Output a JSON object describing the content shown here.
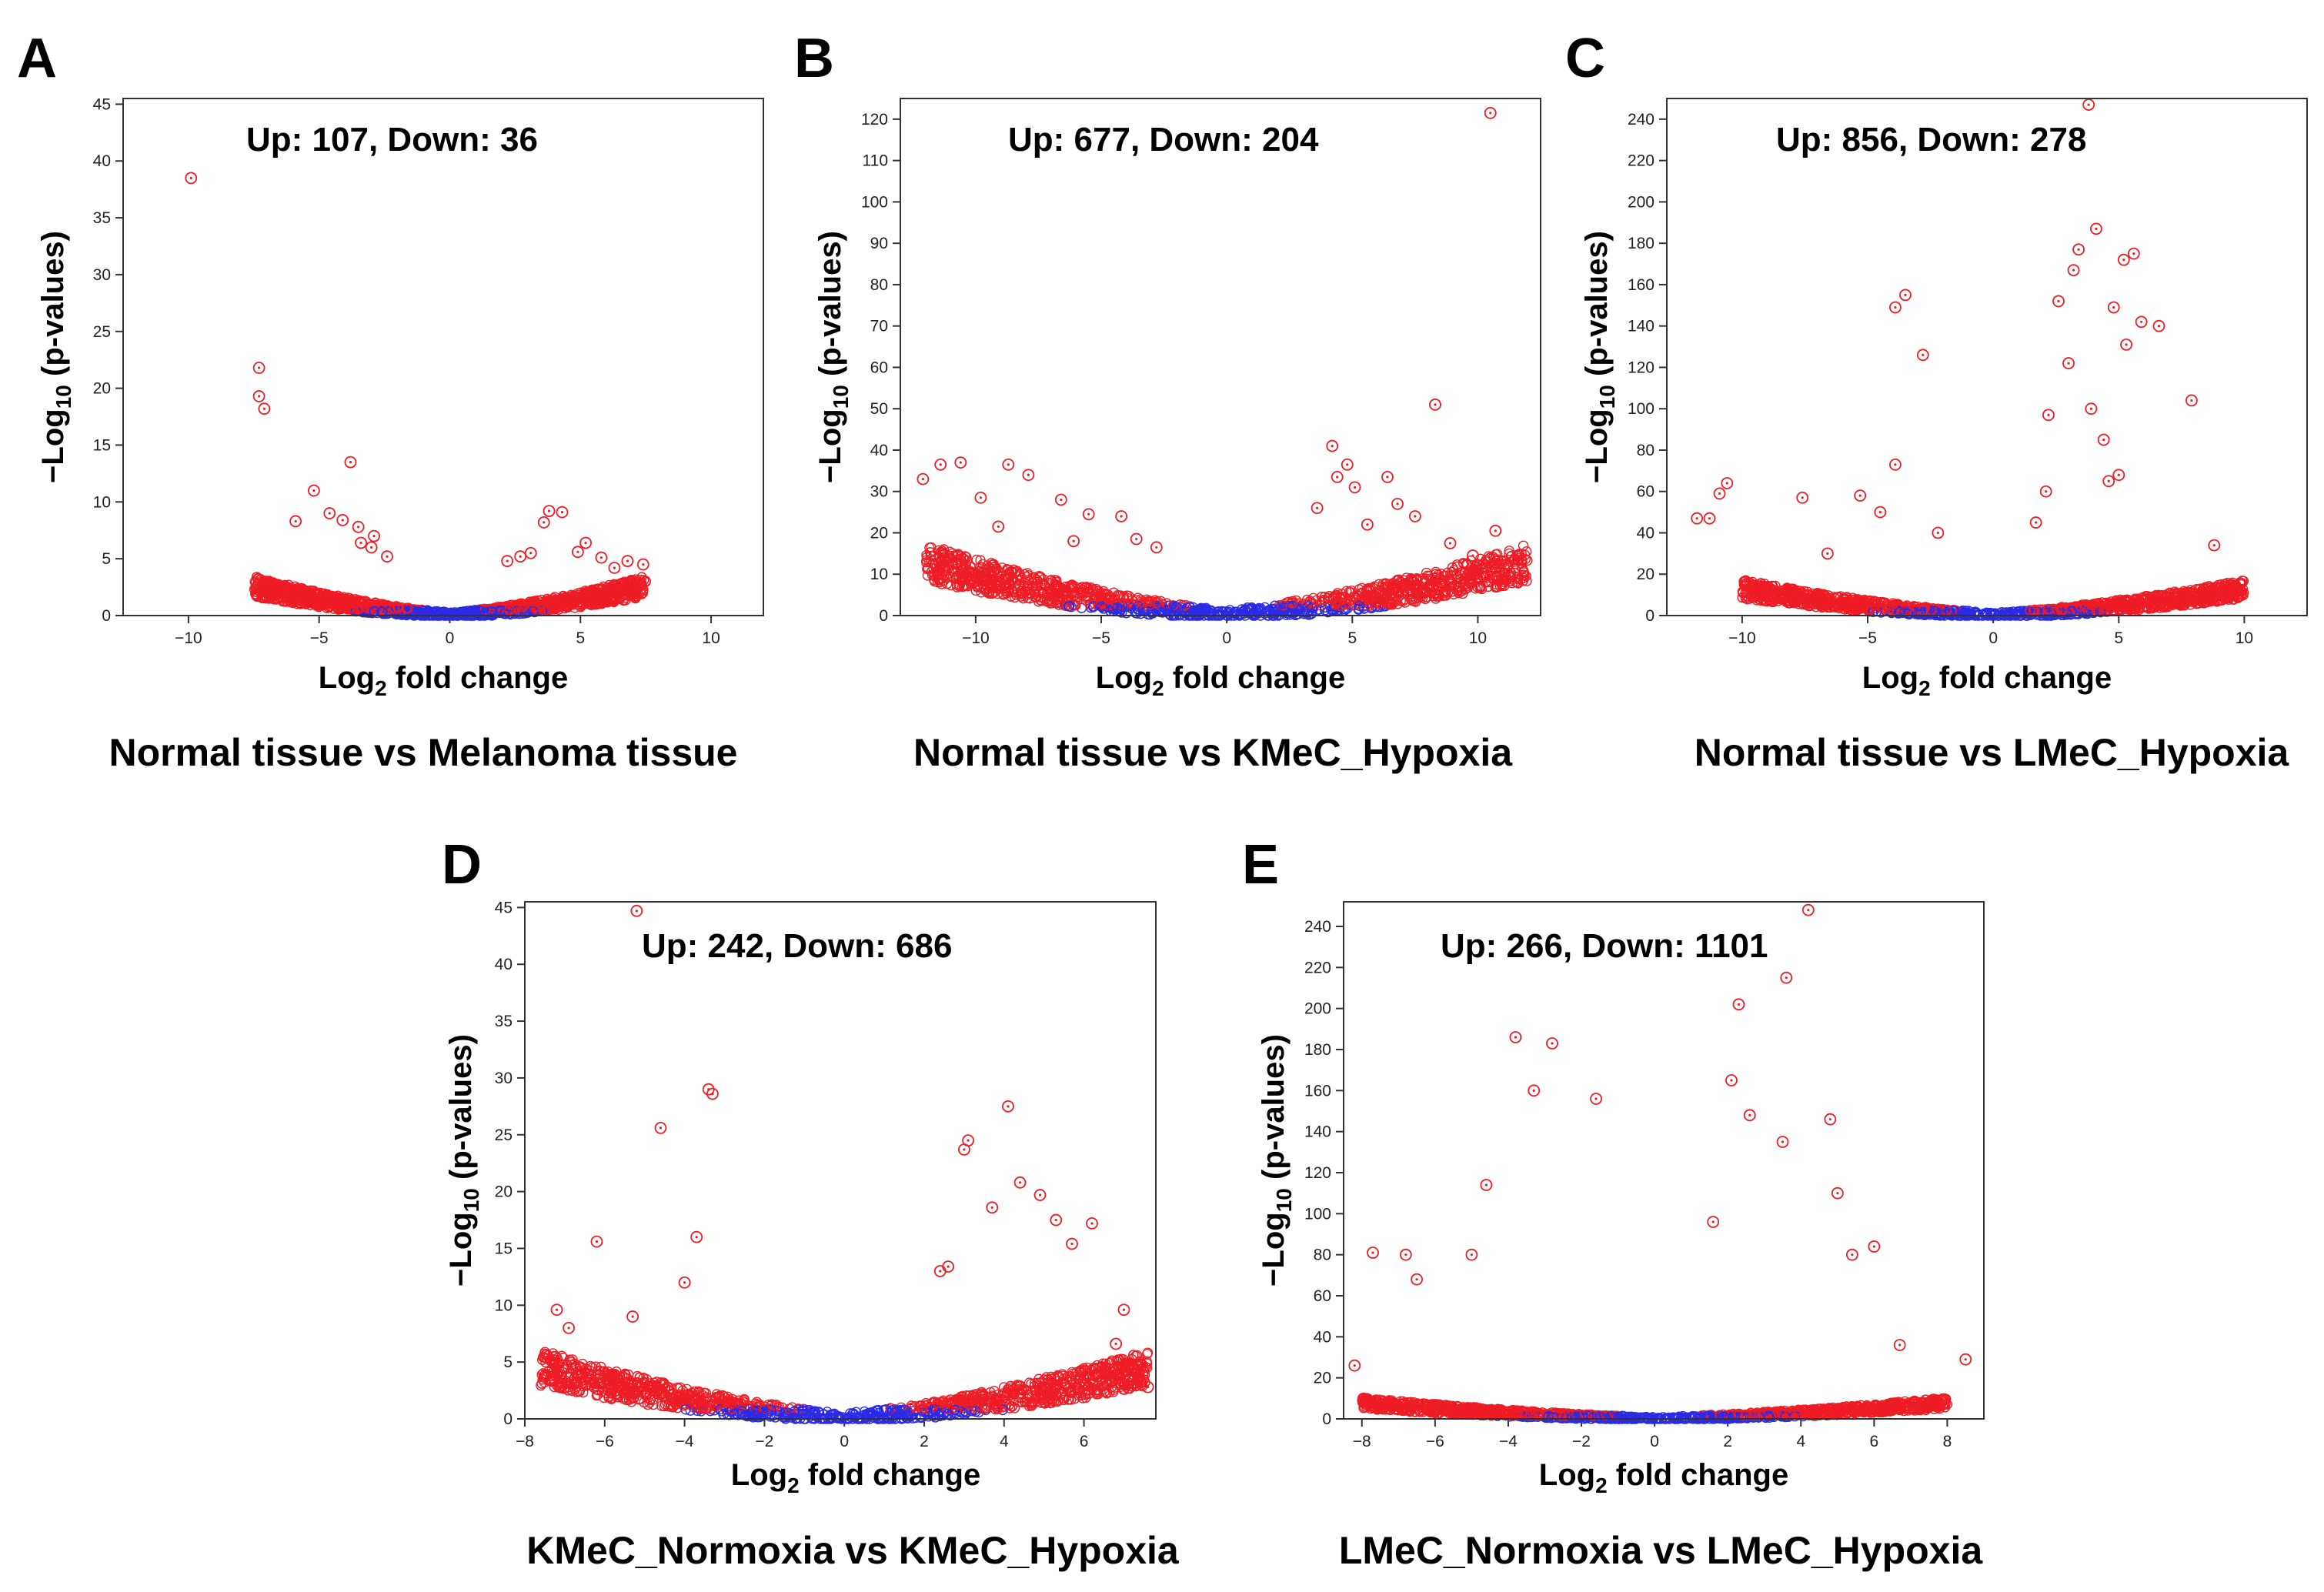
{
  "colors": {
    "significant": "#ee1c25",
    "nonsignificant": "#2a2ae6"
  },
  "chart_data": [
    {
      "panel": "A",
      "type": "scatter",
      "subtype": "volcano",
      "counts_label": "Up: 107, Down: 36",
      "caption": "Normal tissue vs Melanoma tissue",
      "xlabel_main": "Log",
      "xlabel_sub": "2",
      "xlabel_rest": " fold change",
      "ylabel_main": "−Log",
      "ylabel_sub": "10",
      "ylabel_rest": " (p-values)",
      "xlim": [
        -12.5,
        12
      ],
      "ylim": [
        0,
        45.5
      ],
      "xticks": [
        -10,
        -5,
        0,
        5,
        10
      ],
      "xtick_labels": [
        "−10",
        "−5",
        "0",
        "5",
        "10"
      ],
      "yticks": [
        0,
        5,
        10,
        15,
        20,
        25,
        30,
        35,
        40,
        45
      ],
      "ytick_labels": [
        "0",
        "5",
        "10",
        "15",
        "20",
        "25",
        "30",
        "35",
        "40",
        "45"
      ],
      "xspan": 7.5,
      "ymax_curve": 4,
      "series": [
        {
          "name": "significant",
          "x": [
            -9.9,
            -7.3,
            -7.3,
            -7.1,
            -3.8,
            -5.2,
            -5.9,
            -4.6,
            -3.5,
            -3.0,
            -2.4,
            -4.1,
            3.8,
            4.3,
            3.6,
            5.2,
            6.8,
            7.4,
            2.7,
            4.9,
            5.8,
            6.3,
            -3.4,
            -2.9,
            3.1,
            2.2
          ],
          "y": [
            38.5,
            21.8,
            19.3,
            18.2,
            13.5,
            11.0,
            8.3,
            9.0,
            7.8,
            6.0,
            5.2,
            8.4,
            9.2,
            9.1,
            8.2,
            6.4,
            4.8,
            4.5,
            5.2,
            5.6,
            5.1,
            4.2,
            6.4,
            7.0,
            5.5,
            4.8
          ]
        }
      ]
    },
    {
      "panel": "B",
      "type": "scatter",
      "subtype": "volcano",
      "counts_label": "Up: 677, Down: 204",
      "caption": "Normal tissue vs KMeC_Hypoxia",
      "xlabel_main": "Log",
      "xlabel_sub": "2",
      "xlabel_rest": " fold change",
      "ylabel_main": "−Log",
      "ylabel_sub": "10",
      "ylabel_rest": " (p-values)",
      "xlim": [
        -13,
        12.5
      ],
      "ylim": [
        0,
        125
      ],
      "xticks": [
        -10,
        -5,
        0,
        5,
        10
      ],
      "xtick_labels": [
        "−10",
        "−5",
        "0",
        "5",
        "10"
      ],
      "yticks": [
        0,
        10,
        20,
        30,
        40,
        50,
        60,
        70,
        80,
        90,
        100,
        110,
        120
      ],
      "ytick_labels": [
        "0",
        "10",
        "20",
        "30",
        "40",
        "50",
        "60",
        "70",
        "80",
        "90",
        "100",
        "110",
        "120"
      ],
      "xspan": 12,
      "ymax_curve": 20,
      "series": [
        {
          "name": "significant",
          "x": [
            10.5,
            8.3,
            10.7,
            4.2,
            4.8,
            5.1,
            6.4,
            6.8,
            7.5,
            8.9,
            9.8,
            3.6,
            4.4,
            5.6,
            -12.1,
            -11.4,
            -10.6,
            -9.8,
            -8.7,
            -7.9,
            -6.6,
            -5.5,
            -4.2,
            -3.6,
            -2.8,
            -9.1,
            -6.1
          ],
          "y": [
            121.5,
            51.0,
            20.5,
            41.0,
            36.5,
            31.0,
            33.5,
            27.0,
            24.0,
            17.5,
            14.5,
            26.0,
            33.5,
            22.0,
            33.0,
            36.5,
            37.0,
            28.5,
            36.5,
            34.0,
            28.0,
            24.5,
            24.0,
            18.5,
            16.5,
            21.5,
            18.0
          ]
        }
      ]
    },
    {
      "panel": "C",
      "type": "scatter",
      "subtype": "volcano",
      "counts_label": "Up: 856, Down: 278",
      "caption": "Normal tissue vs LMeC_Hypoxia",
      "xlabel_main": "Log",
      "xlabel_sub": "2",
      "xlabel_rest": " fold change",
      "ylabel_main": "−Log",
      "ylabel_sub": "10",
      "ylabel_rest": " (p-values)",
      "xlim": [
        -13,
        12.5
      ],
      "ylim": [
        0,
        250
      ],
      "xticks": [
        -10,
        -5,
        0,
        5,
        10
      ],
      "xtick_labels": [
        "−10",
        "−5",
        "0",
        "5",
        "10"
      ],
      "yticks": [
        0,
        20,
        40,
        60,
        80,
        100,
        120,
        140,
        160,
        180,
        200,
        220,
        240
      ],
      "ytick_labels": [
        "0",
        "20",
        "40",
        "60",
        "80",
        "100",
        "120",
        "140",
        "160",
        "180",
        "200",
        "220",
        "240"
      ],
      "xspan": 10,
      "ymax_curve": 20,
      "series": [
        {
          "name": "significant",
          "x": [
            3.8,
            4.1,
            5.6,
            3.4,
            5.2,
            3.2,
            2.6,
            4.8,
            5.9,
            6.6,
            5.3,
            3.9,
            3.0,
            4.4,
            2.2,
            5.0,
            7.9,
            8.8,
            -3.5,
            -3.9,
            -2.8,
            -11.8,
            -11.3,
            -10.9,
            -10.6,
            -7.6,
            -5.3,
            -4.5,
            -3.9,
            -2.2,
            -6.6,
            2.1,
            1.7,
            4.6
          ],
          "y": [
            247.0,
            187.0,
            175.0,
            177.0,
            172.0,
            167.0,
            152.0,
            149.0,
            142.0,
            140.0,
            131.0,
            100.0,
            122.0,
            85.0,
            97.0,
            68.0,
            104.0,
            34.0,
            155.0,
            149.0,
            126.0,
            47.0,
            47.0,
            59.0,
            64.0,
            57.0,
            58.0,
            50.0,
            73.0,
            40.0,
            30.0,
            60.0,
            45.0,
            65.0
          ]
        }
      ]
    },
    {
      "panel": "D",
      "type": "scatter",
      "subtype": "volcano",
      "counts_label": "Up: 242, Down: 686",
      "caption": "KMeC_Normoxia vs KMeC_Hypoxia",
      "xlabel_main": "Log",
      "xlabel_sub": "2",
      "xlabel_rest": " fold change",
      "ylabel_main": "−Log",
      "ylabel_sub": "10",
      "ylabel_rest": " (p-values)",
      "xlim": [
        -8,
        7.8
      ],
      "ylim": [
        0,
        45.5
      ],
      "xticks": [
        -8,
        -6,
        -4,
        -2,
        0,
        2,
        4,
        6
      ],
      "xtick_labels": [
        "−8",
        "−6",
        "−4",
        "−2",
        "0",
        "2",
        "4",
        "6"
      ],
      "yticks": [
        0,
        5,
        10,
        15,
        20,
        25,
        30,
        35,
        40,
        45
      ],
      "ytick_labels": [
        "0",
        "5",
        "10",
        "15",
        "20",
        "25",
        "30",
        "35",
        "40",
        "45"
      ],
      "xspan": 7.6,
      "ymax_curve": 7,
      "series": [
        {
          "name": "significant",
          "x": [
            -5.2,
            -3.4,
            -3.3,
            -4.6,
            -6.2,
            -7.2,
            -6.9,
            -5.3,
            -4.0,
            -3.7,
            4.1,
            3.1,
            3.0,
            2.6,
            4.4,
            4.9,
            5.3,
            6.2,
            7.0,
            7.6,
            6.8,
            5.7,
            3.7,
            2.4
          ],
          "y": [
            44.7,
            29.0,
            28.6,
            25.6,
            15.6,
            9.6,
            8.0,
            9.0,
            12.0,
            16.0,
            27.5,
            24.5,
            23.7,
            13.4,
            20.8,
            19.7,
            17.5,
            17.2,
            9.6,
            2.8,
            6.6,
            15.4,
            18.6,
            13.0
          ]
        }
      ]
    },
    {
      "panel": "E",
      "type": "scatter",
      "subtype": "volcano",
      "counts_label": "Up: 266, Down: 1101",
      "caption": "LMeC_Normoxia vs LMeC_Hypoxia",
      "xlabel_main": "Log",
      "xlabel_sub": "2",
      "xlabel_rest": " fold change",
      "ylabel_main": "−Log",
      "ylabel_sub": "10",
      "ylabel_rest": " (p-values)",
      "xlim": [
        -8.5,
        9
      ],
      "ylim": [
        0,
        252
      ],
      "xticks": [
        -8,
        -6,
        -4,
        -2,
        0,
        2,
        4,
        6,
        8
      ],
      "xtick_labels": [
        "−8",
        "−6",
        "−4",
        "−2",
        "0",
        "2",
        "4",
        "6",
        "8"
      ],
      "yticks": [
        0,
        20,
        40,
        60,
        80,
        100,
        120,
        140,
        160,
        180,
        200,
        220,
        240
      ],
      "ytick_labels": [
        "0",
        "20",
        "40",
        "60",
        "80",
        "100",
        "120",
        "140",
        "160",
        "180",
        "200",
        "220",
        "240"
      ],
      "xspan": 8,
      "ymax_curve": 12,
      "series": [
        {
          "name": "significant",
          "x": [
            4.2,
            3.6,
            2.3,
            2.1,
            -3.8,
            -2.8,
            -4.6,
            -5.0,
            -6.8,
            -6.5,
            -7.7,
            -8.2,
            -3.3,
            4.8,
            5.0,
            5.4,
            6.0,
            6.7,
            8.5,
            3.5,
            2.6,
            -1.6,
            1.6
          ],
          "y": [
            248.0,
            215.0,
            202.0,
            165.0,
            186.0,
            183.0,
            114.0,
            80.0,
            80.0,
            68.0,
            81.0,
            26.0,
            160.0,
            146.0,
            110.0,
            80.0,
            84.0,
            36.0,
            29.0,
            135.0,
            148.0,
            156.0,
            96.0
          ]
        }
      ]
    }
  ]
}
